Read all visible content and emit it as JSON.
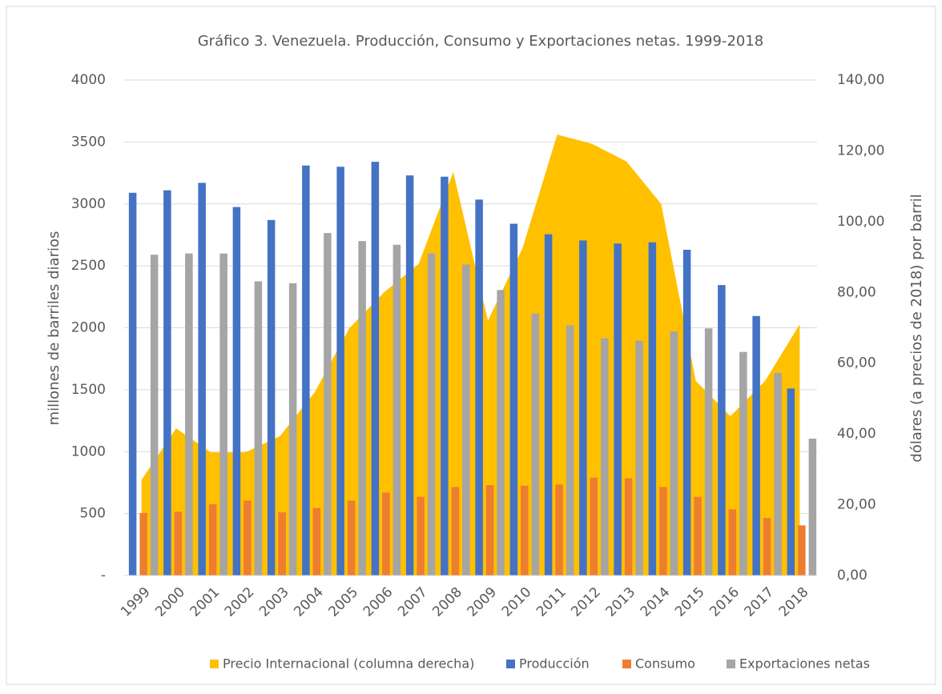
{
  "chart_data": {
    "type": "bar-area",
    "title": "Gráfico 3. Venezuela. Producción, Consumo y Exportaciones netas. 1999-2018",
    "ylabel": "millones de barriles diarios",
    "y2label": "dólares (a precios de 2018) por barril",
    "categories": [
      "1999",
      "2000",
      "2001",
      "2002",
      "2003",
      "2004",
      "2005",
      "2006",
      "2007",
      "2008",
      "2009",
      "2010",
      "2011",
      "2012",
      "2013",
      "2014",
      "2015",
      "2016",
      "2017",
      "2018"
    ],
    "series": [
      {
        "name": "Precio Internacional (columna derecha)",
        "color": "#ffc000",
        "axis": "y2",
        "kind": "area",
        "values": [
          27,
          41.6,
          34.8,
          34.8,
          39.4,
          51.8,
          69.9,
          80,
          88,
          114,
          72,
          92.5,
          124.6,
          122,
          117,
          105,
          55,
          45,
          55,
          71
        ]
      },
      {
        "name": "Producción",
        "color": "#4472c4",
        "kind": "bar",
        "values": [
          3090,
          3110,
          3170,
          2975,
          2870,
          3310,
          3300,
          3340,
          3230,
          3220,
          3035,
          2840,
          2755,
          2705,
          2680,
          2690,
          2630,
          2345,
          2095,
          1510
        ]
      },
      {
        "name": "Consumo",
        "color": "#ed7d31",
        "kind": "bar",
        "values": [
          505,
          515,
          575,
          605,
          510,
          545,
          605,
          670,
          635,
          715,
          730,
          725,
          735,
          790,
          785,
          715,
          635,
          535,
          465,
          405
        ]
      },
      {
        "name": "Exportaciones netas",
        "color": "#a5a5a5",
        "kind": "bar",
        "values": [
          2590,
          2600,
          2600,
          2375,
          2360,
          2765,
          2700,
          2670,
          2600,
          2510,
          2305,
          2115,
          2020,
          1915,
          1895,
          1970,
          1995,
          1805,
          1635,
          1105
        ]
      }
    ],
    "ylim": [
      0,
      4000
    ],
    "yticks": [
      {
        "value": 0,
        "label": "-"
      },
      500,
      1000,
      1500,
      2000,
      2500,
      3000,
      3500,
      4000
    ],
    "y2lim": [
      0,
      140
    ],
    "y2ticks": [
      {
        "value": 0,
        "label": "0,00"
      },
      {
        "value": 20,
        "label": "20,00"
      },
      {
        "value": 40,
        "label": "40,00"
      },
      {
        "value": 60,
        "label": "60,00"
      },
      {
        "value": 80,
        "label": "80,00"
      },
      {
        "value": 100,
        "label": "100,00"
      },
      {
        "value": 120,
        "label": "120,00"
      },
      {
        "value": 140,
        "label": "140,00"
      }
    ],
    "grid": true,
    "legend": "bottom"
  }
}
